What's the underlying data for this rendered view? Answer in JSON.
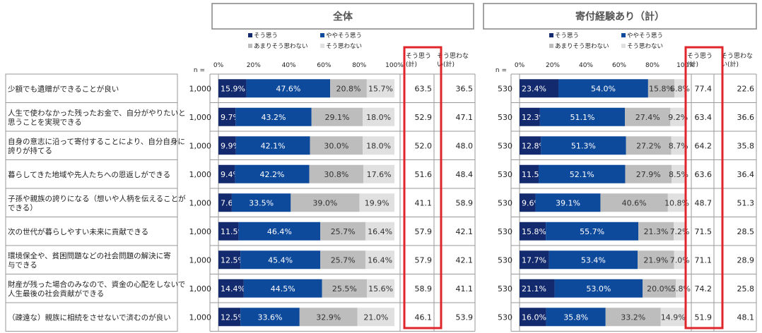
{
  "chart_data": {
    "type": "bar",
    "stacked": true,
    "orientation": "horizontal",
    "categories": [
      "少額でも遺贈ができることが良い",
      "人生で使わなかった残ったお金で、自分がやりたいと思うことを実現できる",
      "自身の意志に沿って寄付することにより、自分自身に誇りが持てる",
      "暮らしてきた地域や先人たちへの恩返しができる",
      "子孫や親族の誇りになる（想いや人柄を伝えることができる）",
      "次の世代が暮らしやすい未来に貢献できる",
      "環境保全や、貧困問題などの社会問題の解決に寄与できる",
      "財産が残った場合のみなので、資金の心配をしないで人生最後の社会貢献ができる",
      "（疎遠な）親族に相続をさせないで済むのが良い"
    ],
    "category_lines": [
      [
        "少額でも遺贈ができることが良い"
      ],
      [
        "人生で使わなかった残ったお金で、自分がやりたいと",
        "思うことを実現できる"
      ],
      [
        "自身の意志に沿って寄付することにより、自分自身に",
        "誇りが持てる"
      ],
      [
        "暮らしてきた地域や先人たちへの恩返しができる"
      ],
      [
        "子孫や親族の誇りになる（想いや人柄を伝えることが",
        "できる）"
      ],
      [
        "次の世代が暮らしやすい未来に貢献できる"
      ],
      [
        "環境保全や、貧困問題などの社会問題の解決に寄",
        "与できる"
      ],
      [
        "財産が残った場合のみなので、資金の心配をしないで",
        "人生最後の社会貢献ができる"
      ],
      [
        "（疎遠な）親族に相続をさせないで済むのが良い"
      ]
    ],
    "n_label": "n =",
    "xticks": [
      "0%",
      "20%",
      "40%",
      "60%",
      "80%",
      "100%"
    ],
    "xlim": [
      0,
      100
    ],
    "legend": [
      "そう思う",
      "ややそう思う",
      "あまりそう思わない",
      "そう思わない"
    ],
    "colors": [
      "#142a6e",
      "#0e4a9c",
      "#bdbdbd",
      "#e0e0e0"
    ],
    "sum_headers": [
      "そう思う（計）",
      "そう思わない（計）"
    ],
    "sum_header_lines": [
      [
        "そう思う",
        "(計)"
      ],
      [
        "そう思わな",
        "い(計)"
      ]
    ],
    "highlight_color": "#e0252b",
    "panels": [
      {
        "title": "全体",
        "n": [
          "1,000",
          "1,000",
          "1,000",
          "1,000",
          "1,000",
          "1,000",
          "1,000",
          "1,000",
          "1,000"
        ],
        "series": [
          {
            "name": "そう思う",
            "values": [
              15.9,
              9.7,
              9.9,
              9.4,
              7.6,
              11.5,
              12.5,
              14.4,
              12.5
            ]
          },
          {
            "name": "ややそう思う",
            "values": [
              47.6,
              43.2,
              42.1,
              42.2,
              33.5,
              46.4,
              45.4,
              44.5,
              33.6
            ]
          },
          {
            "name": "あまりそう思わない",
            "values": [
              20.8,
              29.1,
              30.0,
              30.8,
              39.0,
              25.7,
              25.7,
              25.5,
              32.9
            ]
          },
          {
            "name": "そう思わない",
            "values": [
              15.7,
              18.0,
              18.0,
              17.6,
              19.9,
              16.4,
              16.4,
              15.6,
              21.0
            ]
          }
        ],
        "sum_agree": [
          "63.5",
          "52.9",
          "52.0",
          "51.6",
          "41.1",
          "57.9",
          "57.9",
          "58.9",
          "46.1"
        ],
        "sum_disagree": [
          "36.5",
          "47.1",
          "48.0",
          "48.4",
          "58.9",
          "42.1",
          "42.1",
          "41.1",
          "53.9"
        ]
      },
      {
        "title": "寄付経験あり（計）",
        "n": [
          "530",
          "530",
          "530",
          "530",
          "530",
          "530",
          "530",
          "530",
          "530"
        ],
        "series": [
          {
            "name": "そう思う",
            "values": [
              23.4,
              12.3,
              12.8,
              11.5,
              9.6,
              15.8,
              17.7,
              21.1,
              16.0
            ]
          },
          {
            "name": "ややそう思う",
            "values": [
              54.0,
              51.1,
              51.3,
              52.1,
              39.1,
              55.7,
              53.4,
              53.0,
              35.8
            ]
          },
          {
            "name": "あまりそう思わない",
            "values": [
              15.8,
              27.4,
              27.2,
              27.9,
              40.6,
              21.3,
              21.9,
              20.0,
              33.2
            ]
          },
          {
            "name": "そう思わない",
            "values": [
              6.8,
              9.2,
              8.7,
              8.5,
              10.8,
              7.2,
              7.0,
              5.8,
              14.9
            ]
          }
        ],
        "sum_agree": [
          "77.4",
          "63.4",
          "64.2",
          "63.6",
          "48.7",
          "71.5",
          "71.1",
          "74.2",
          "51.9"
        ],
        "sum_disagree": [
          "22.6",
          "36.6",
          "35.8",
          "36.4",
          "51.3",
          "28.5",
          "28.9",
          "25.8",
          "48.1"
        ]
      }
    ]
  }
}
